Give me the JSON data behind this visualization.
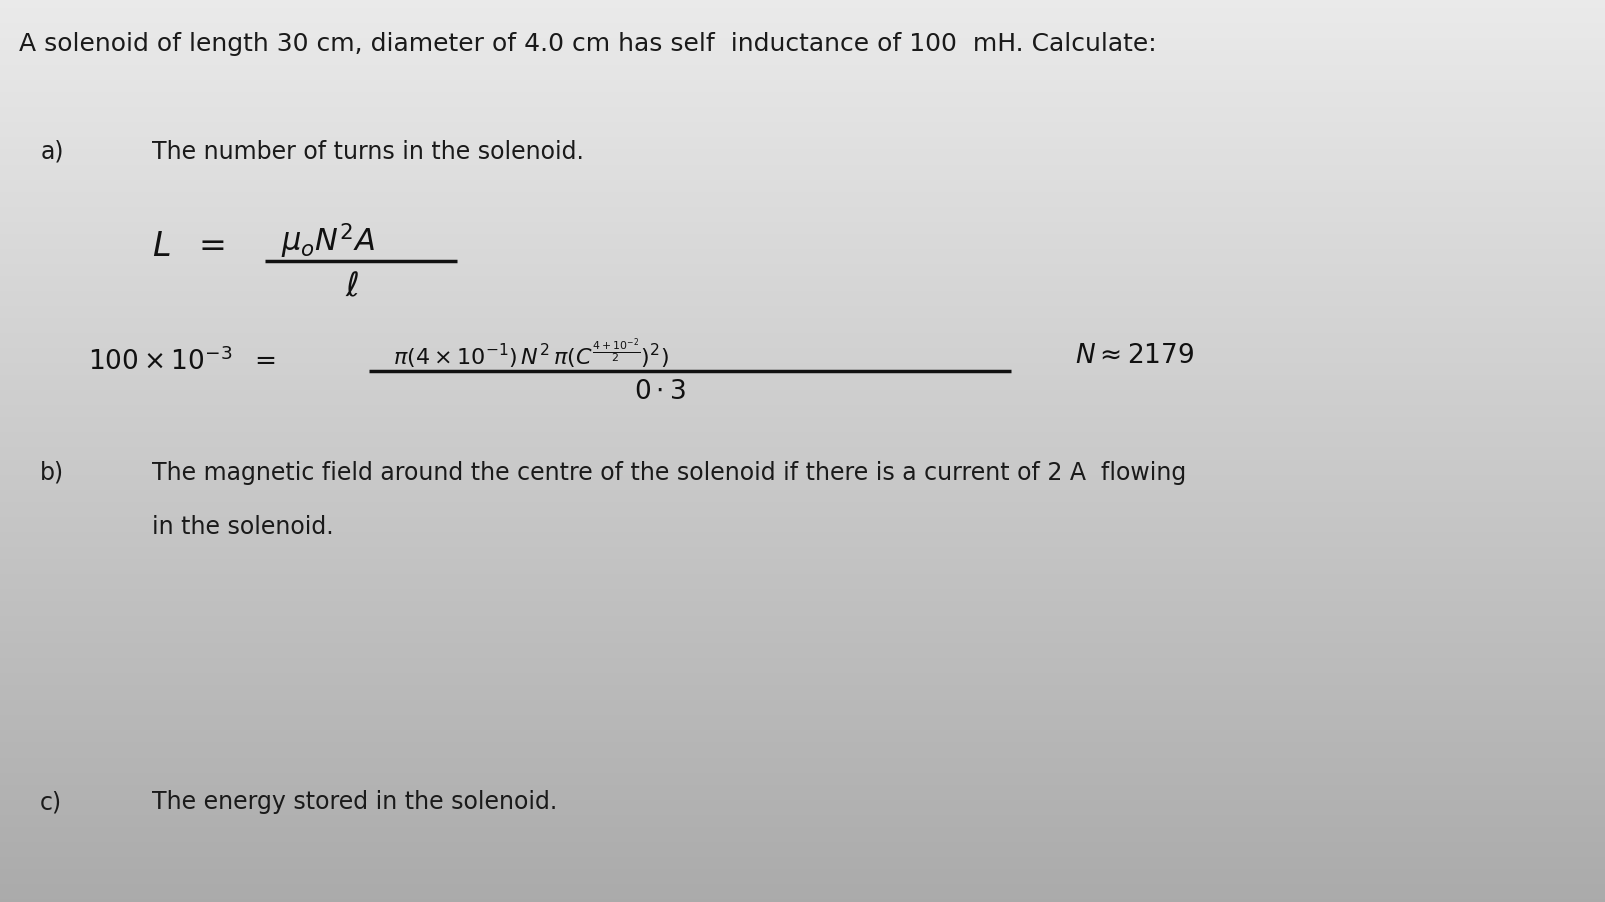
{
  "bg_color_top": "#e8e8e8",
  "bg_color_mid": "#c8c8c8",
  "bg_color_bot": "#b0b0b0",
  "title_text": "A solenoid of length 30 cm, diameter of 4.0 cm has self  inductance of 100  mH. Calculate:",
  "part_a_label": "a)",
  "part_a_text": "The number of turns in the solenoid.",
  "part_b_label": "b)",
  "part_b_line1": "The magnetic field around the centre of the solenoid if there is a current of 2 A  flowing",
  "part_b_line2": "in the solenoid.",
  "part_c_label": "c)",
  "part_c_text": "The energy stored in the solenoid.",
  "font_color": "#1a1a1a",
  "hand_color": "#111111",
  "title_fontsize": 18,
  "body_fontsize": 17,
  "hand_fontsize": 20
}
